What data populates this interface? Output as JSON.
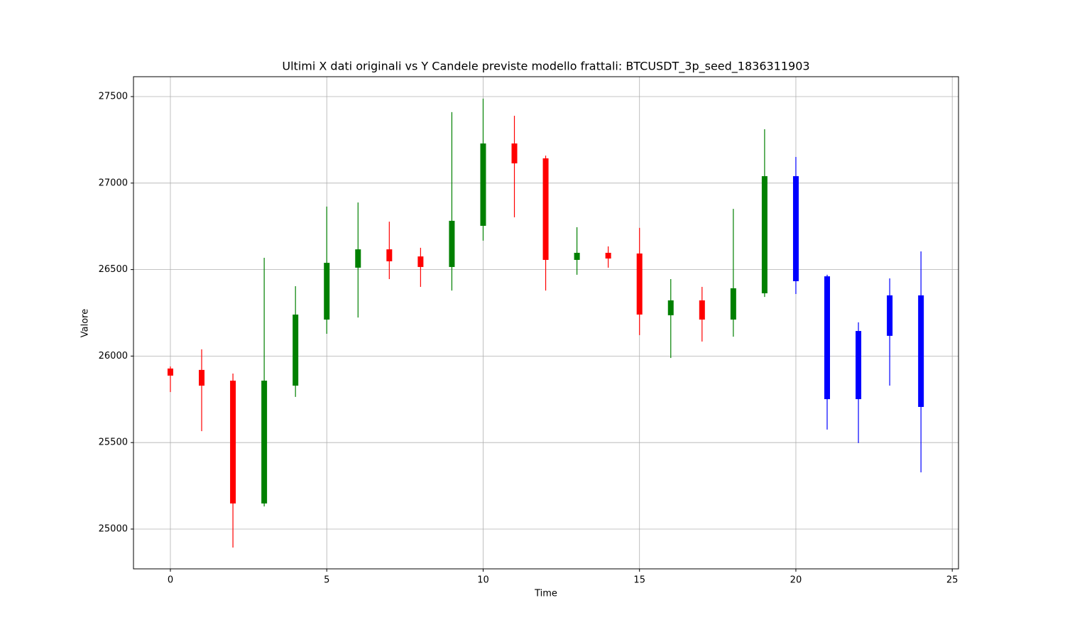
{
  "chart_data": {
    "type": "candlestick",
    "title": "Ultimi X dati originali vs Y Candele previste modello frattali: BTCUSDT_3p_seed_1836311903",
    "x_label": "Time",
    "y_label": "Valore",
    "xlim": [
      -1.18,
      25.2
    ],
    "xticks": [
      0,
      5,
      10,
      15,
      20,
      25
    ],
    "ylim": [
      24770,
      27615
    ],
    "yticks": [
      25000,
      25500,
      26000,
      26500,
      27000,
      27500
    ],
    "grid": true,
    "series": [
      {
        "up_color": "green",
        "down_color": "red",
        "x": [
          0,
          1,
          2,
          3,
          4,
          5,
          6,
          7,
          8,
          9,
          10,
          11,
          12,
          13,
          14,
          15,
          16,
          17,
          18,
          19
        ],
        "open": [
          25928,
          25920,
          25858,
          25148,
          25829,
          26211,
          26511,
          26617,
          26576,
          26515,
          26753,
          27229,
          27143,
          26556,
          26597,
          26593,
          26236,
          26322,
          26211,
          26363
        ],
        "high": [
          25940,
          26039,
          25899,
          26568,
          26404,
          26864,
          26888,
          26777,
          26626,
          27410,
          27488,
          27389,
          27159,
          26745,
          26634,
          26741,
          26445,
          26400,
          26851,
          27311
        ],
        "low": [
          25792,
          25566,
          24893,
          25131,
          25764,
          26129,
          26223,
          26445,
          26400,
          26379,
          26667,
          26802,
          26379,
          26470,
          26511,
          26121,
          25989,
          26084,
          26112,
          26342
        ],
        "close": [
          25887,
          25829,
          25148,
          25858,
          26240,
          26539,
          26617,
          26548,
          26515,
          26782,
          27229,
          27114,
          26556,
          26597,
          26564,
          26240,
          26322,
          26211,
          26392,
          27040
        ]
      },
      {
        "color": "blue",
        "x": [
          20,
          21,
          22,
          23,
          24
        ],
        "open": [
          27040,
          26461,
          26145,
          26351,
          26351
        ],
        "high": [
          27151,
          26470,
          26195,
          26449,
          26605
        ],
        "low": [
          26359,
          25575,
          25497,
          25829,
          25328
        ],
        "close": [
          26433,
          25751,
          25751,
          26117,
          25706
        ]
      }
    ]
  }
}
